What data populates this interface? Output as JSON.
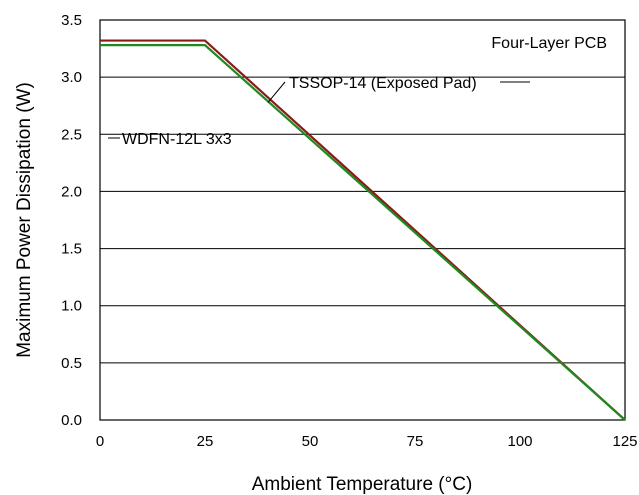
{
  "chart_data": {
    "type": "line",
    "title": "",
    "xlabel": "Ambient Temperature (°C)",
    "ylabel": "Maximum Power Dissipation (W)",
    "xlim": [
      0,
      125
    ],
    "ylim": [
      0,
      3.5
    ],
    "x_ticks": [
      "0",
      "25",
      "50",
      "75",
      "100",
      "125"
    ],
    "y_ticks": [
      "0.0",
      "0.5",
      "1.0",
      "1.5",
      "2.0",
      "2.5",
      "3.0",
      "3.5"
    ],
    "grid": "horizontal",
    "series": [
      {
        "name": "TSSOP-14 (Exposed Pad)",
        "color": "#8b1a1a",
        "x": [
          0,
          25,
          125
        ],
        "y": [
          3.32,
          3.32,
          0
        ]
      },
      {
        "name": "WDFN-12L 3x3",
        "color": "#1f8a1f",
        "x": [
          0,
          25,
          125
        ],
        "y": [
          3.28,
          3.28,
          0
        ]
      }
    ],
    "annotations": {
      "board": "Four-Layer PCB",
      "tssop_label": "TSSOP-14 (Exposed Pad)",
      "wdfn_label": "WDFN-12L 3x3"
    }
  }
}
